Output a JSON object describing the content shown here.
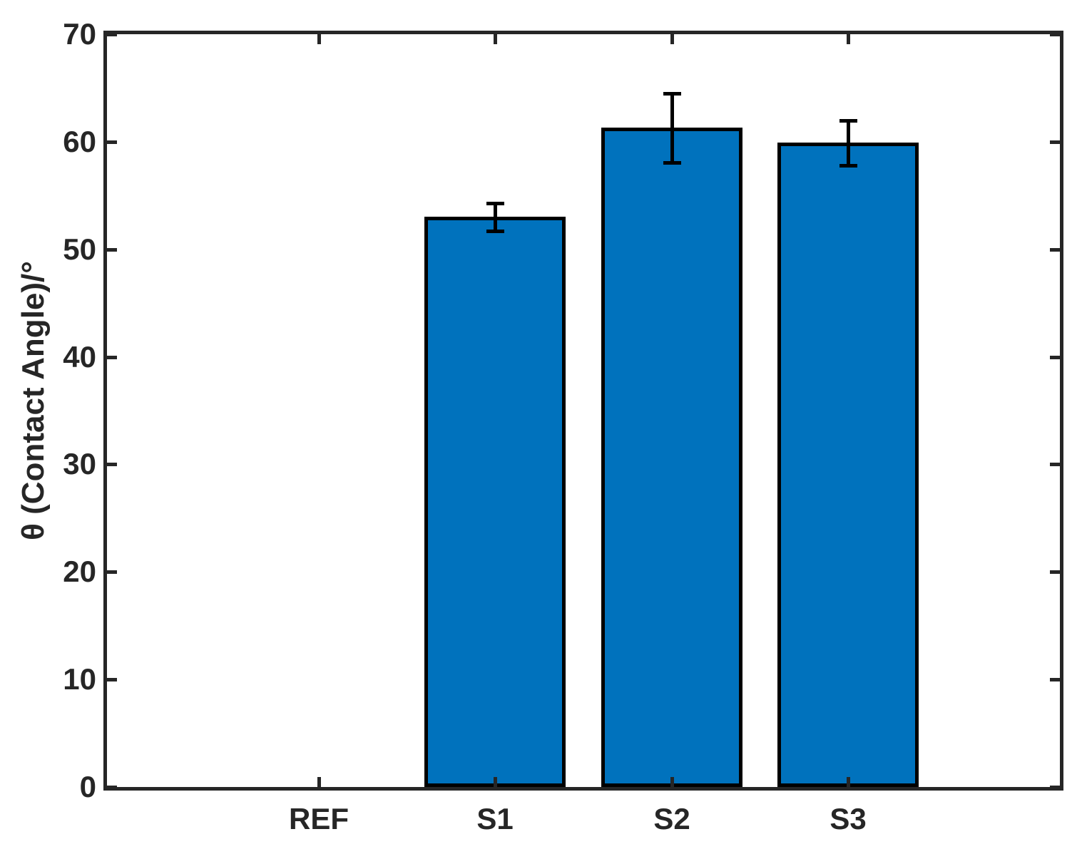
{
  "chart_data": {
    "type": "bar",
    "title": "",
    "xlabel": "",
    "ylabel": "θ (Contact Angle)/°",
    "categories": [
      "REF",
      "S1",
      "S2",
      "S3"
    ],
    "values": [
      0,
      53.0,
      61.3,
      59.9
    ],
    "errors": [
      0,
      1.3,
      3.2,
      2.1
    ],
    "ylim": [
      0,
      70
    ],
    "yticks": [
      0,
      10,
      20,
      30,
      40,
      50,
      60,
      70
    ],
    "grid": false,
    "legend": false,
    "tick_direction": "in",
    "box": true,
    "bar_color": "#0072BD",
    "bar_edge_color": "#000000",
    "error_bar_color": "#000000",
    "axis_color": "#262626",
    "background_color": "#ffffff"
  }
}
